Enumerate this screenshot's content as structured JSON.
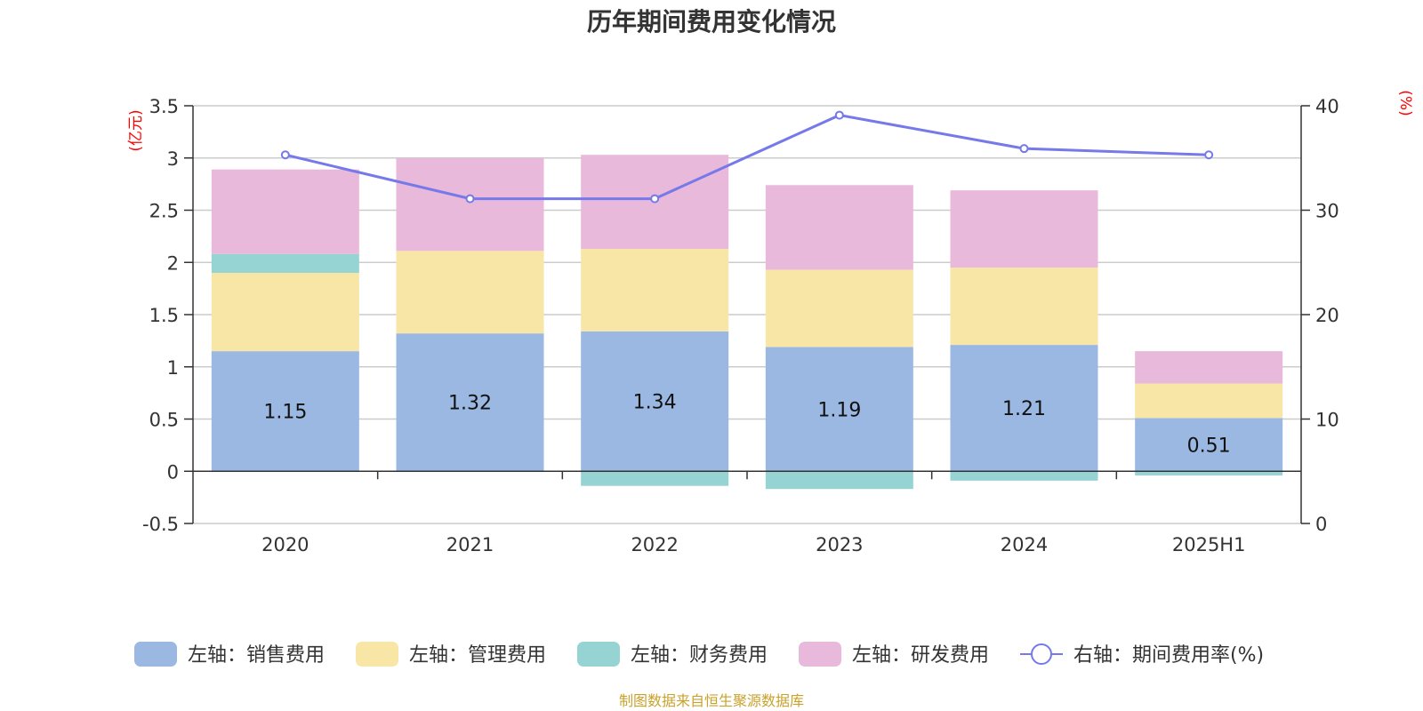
{
  "chart_data": {
    "type": "bar",
    "title": "历年期间费用变化情况",
    "categories": [
      "2020",
      "2021",
      "2022",
      "2023",
      "2024",
      "2025H1"
    ],
    "left_axis": {
      "unit": "(亿元)",
      "ylim": [
        -0.5,
        3.5
      ],
      "ticks": [
        "3.5",
        "3",
        "2.5",
        "2",
        "1.5",
        "1",
        "0.5",
        "0",
        "-0.5"
      ],
      "tick_values": [
        3.5,
        3,
        2.5,
        2,
        1.5,
        1,
        0.5,
        0,
        -0.5
      ]
    },
    "right_axis": {
      "unit": "(%)",
      "ylim": [
        0,
        40
      ],
      "ticks": [
        "40",
        "30",
        "20",
        "10",
        "0"
      ],
      "tick_values": [
        40,
        30,
        20,
        10,
        0
      ]
    },
    "series": [
      {
        "name": "左轴：销售费用",
        "type": "bar",
        "axis": "left",
        "color": "#9bb8e2",
        "values": [
          1.15,
          1.32,
          1.34,
          1.19,
          1.21,
          0.51
        ],
        "labels": [
          "1.15",
          "1.32",
          "1.34",
          "1.19",
          "1.21",
          "0.51"
        ]
      },
      {
        "name": "左轴：管理费用",
        "type": "bar",
        "axis": "left",
        "color": "#f8e6a6",
        "values": [
          0.75,
          0.79,
          0.79,
          0.74,
          0.74,
          0.33
        ]
      },
      {
        "name": "左轴：财务费用",
        "type": "bar",
        "axis": "left",
        "color": "#96d4d4",
        "values": [
          0.18,
          0.0,
          -0.14,
          -0.17,
          -0.09,
          -0.04
        ]
      },
      {
        "name": "左轴：研发费用",
        "type": "bar",
        "axis": "left",
        "color": "#e8b9da",
        "values": [
          0.81,
          0.89,
          0.9,
          0.81,
          0.74,
          0.31
        ]
      },
      {
        "name": "右轴：期间费用率(%)",
        "type": "line",
        "axis": "right",
        "color": "#7579e9",
        "values": [
          35.3,
          31.1,
          31.1,
          39.1,
          35.9,
          35.3
        ]
      }
    ],
    "grid": true,
    "legend_position": "bottom",
    "source": "制图数据来自恒生聚源数据库"
  }
}
